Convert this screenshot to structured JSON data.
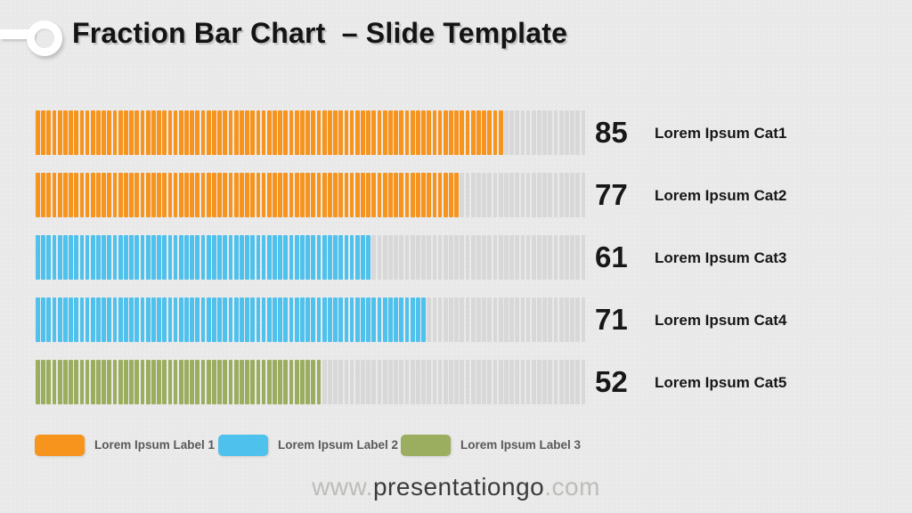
{
  "title": "Fraction Bar Chart  – Slide Template",
  "chart_data": {
    "type": "bar",
    "orientation": "horizontal",
    "max": 100,
    "segments_per_bar": 100,
    "categories": [
      "Lorem Ipsum Cat1",
      "Lorem Ipsum Cat2",
      "Lorem Ipsum Cat3",
      "Lorem Ipsum Cat4",
      "Lorem Ipsum Cat5"
    ],
    "values": [
      85,
      77,
      61,
      71,
      52
    ],
    "bar_colors": [
      "#F6941D",
      "#F6941D",
      "#4EC1ED",
      "#4EC1ED",
      "#9BAD5F"
    ],
    "empty_color": "#D8D8D8",
    "value_label_position": "right",
    "grid": false,
    "legend_position": "bottom",
    "legend": [
      {
        "label": "Lorem Ipsum Label 1",
        "color": "#F6941D"
      },
      {
        "label": "Lorem Ipsum Label 2",
        "color": "#4EC1ED"
      },
      {
        "label": "Lorem Ipsum Label 3",
        "color": "#9BAD5F"
      }
    ]
  },
  "footer": {
    "prefix": "www.",
    "domain": "presentationgo",
    "suffix": ".com"
  },
  "colors": {
    "background": "#EDECEC",
    "title_text": "#141414",
    "value_text": "#171717",
    "legend_text": "#595959",
    "footer_dim": "#BCBCB8",
    "footer_strong": "#3B3B3A"
  }
}
